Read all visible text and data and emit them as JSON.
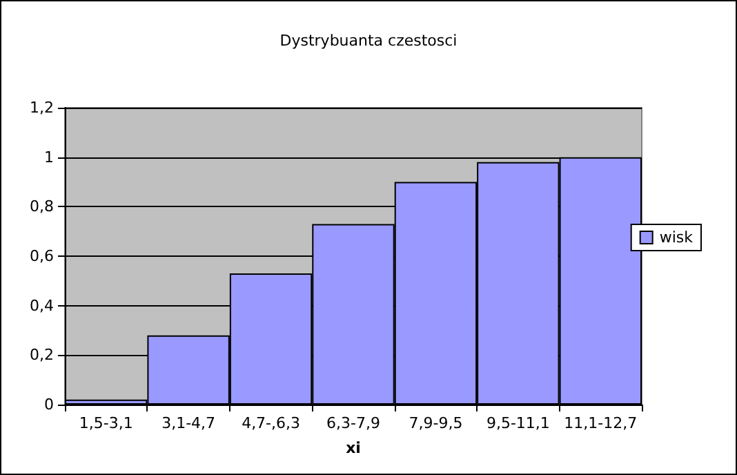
{
  "chart_data": {
    "type": "bar",
    "title": "Dystrybuanta czestosci",
    "xlabel": "xi",
    "categories": [
      "1,5-3,1",
      "3,1-4,7",
      "4,7-,6,3",
      "6,3-7,9",
      "7,9-9,5",
      "9,5-11,1",
      "11,1-12,7"
    ],
    "series": [
      {
        "name": "wisk",
        "color": "#9999ff",
        "values": [
          0.02,
          0.28,
          0.53,
          0.73,
          0.9,
          0.98,
          1.0
        ]
      }
    ],
    "ylim": [
      0,
      1.2
    ],
    "yticks": [
      0,
      {
        "value": 0.2,
        "label": "0,2"
      },
      {
        "value": 0.4,
        "label": "0,4"
      },
      {
        "value": 0.6,
        "label": "0,6"
      },
      {
        "value": 0.8,
        "label": "0,8"
      },
      1,
      {
        "value": 1.2,
        "label": "1,2"
      }
    ],
    "grid": "y",
    "legend": "right"
  }
}
